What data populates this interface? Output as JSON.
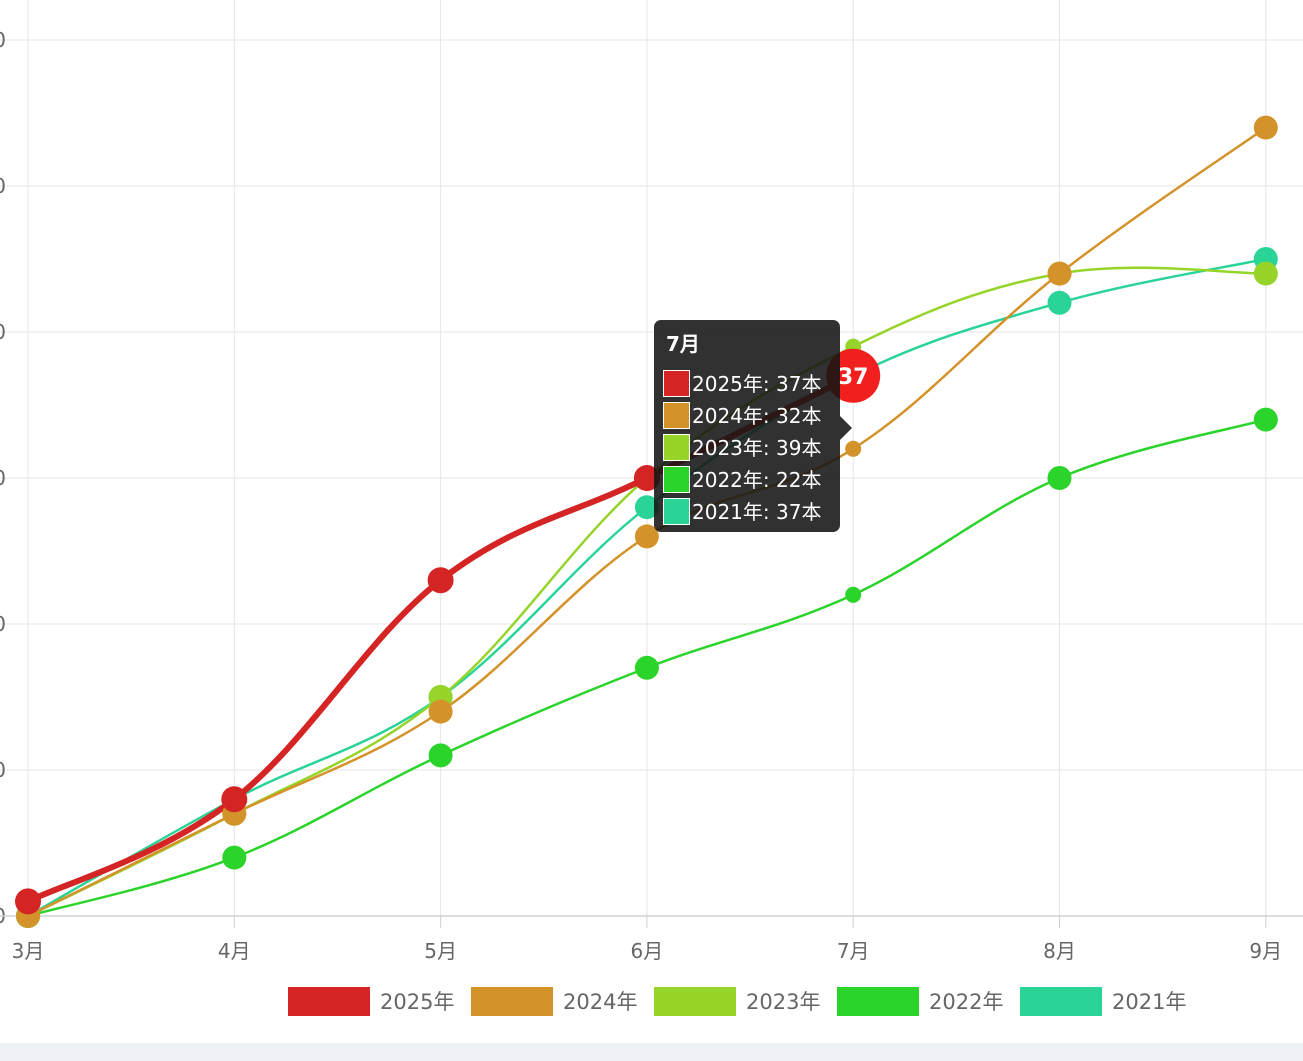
{
  "chart_data": {
    "type": "line",
    "title": "",
    "xlabel": "",
    "ylabel": "",
    "categories": [
      "3月",
      "4月",
      "5月",
      "6月",
      "7月",
      "8月",
      "9月"
    ],
    "y_tick_labels": [
      "0",
      "0",
      "0",
      "0",
      "0",
      "0",
      "0"
    ],
    "ylim": [
      0,
      60
    ],
    "grid": true,
    "legend_position": "bottom",
    "series": [
      {
        "name": "2025年",
        "color": "#d42424",
        "values": [
          1,
          8,
          23,
          30,
          37,
          null,
          null
        ]
      },
      {
        "name": "2024年",
        "color": "#d4922a",
        "values": [
          0,
          7,
          14,
          26,
          32,
          44,
          54
        ]
      },
      {
        "name": "2023年",
        "color": "#96d42a",
        "values": [
          0,
          7,
          15,
          30,
          39,
          44,
          44
        ]
      },
      {
        "name": "2022年",
        "color": "#2ad42a",
        "values": [
          0,
          4,
          11,
          17,
          22,
          30,
          34
        ]
      },
      {
        "name": "2021年",
        "color": "#2ad496",
        "values": [
          0,
          8,
          15,
          28,
          37,
          42,
          45
        ]
      }
    ],
    "highlight": {
      "category": "7月",
      "series": "2025年",
      "value_label": "37"
    },
    "tooltip": {
      "title": "7月",
      "items": [
        "2025年: 37本",
        "2024年: 32本",
        "2023年: 39本",
        "2022年: 22本",
        "2021年: 37本"
      ]
    }
  }
}
